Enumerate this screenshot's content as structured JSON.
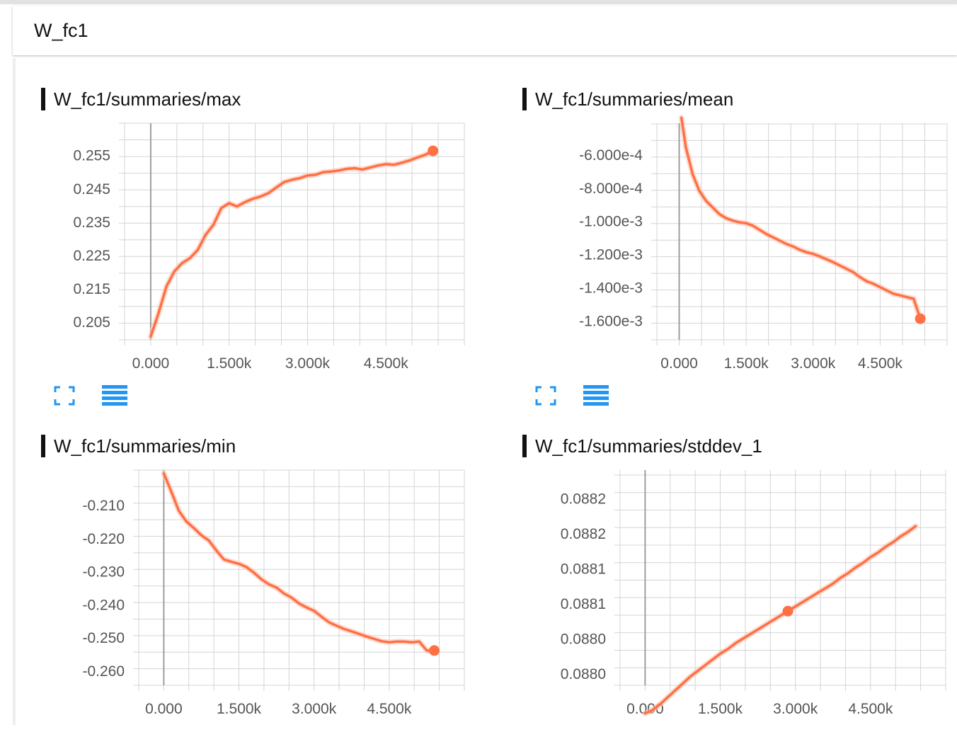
{
  "header": {
    "title": "W_fc1"
  },
  "colors": {
    "line": "#ff7043",
    "halo": "#fbc7b8",
    "grid": "#d4d4d4",
    "zero": "#9e9e9e",
    "icon": "#2196f3",
    "tick": "#555555"
  },
  "charts": [
    {
      "title": "W_fc1/summaries/max",
      "chart_data": {
        "type": "line",
        "x": [
          0,
          150,
          300,
          450,
          600,
          750,
          900,
          1050,
          1200,
          1350,
          1500,
          1650,
          1800,
          1950,
          2100,
          2250,
          2400,
          2550,
          2700,
          2850,
          3000,
          3150,
          3300,
          3450,
          3600,
          3750,
          3900,
          4050,
          4200,
          4350,
          4500,
          4650,
          4800,
          4950,
          5100,
          5250,
          5400
        ],
        "y": [
          0.2005,
          0.2075,
          0.2155,
          0.22,
          0.2225,
          0.224,
          0.2265,
          0.231,
          0.234,
          0.239,
          0.2405,
          0.2395,
          0.2408,
          0.2418,
          0.2425,
          0.2435,
          0.2452,
          0.2468,
          0.2475,
          0.248,
          0.2488,
          0.249,
          0.2498,
          0.25,
          0.2503,
          0.2508,
          0.251,
          0.2506,
          0.2512,
          0.2518,
          0.2522,
          0.252,
          0.2526,
          0.2533,
          0.2542,
          0.255,
          0.2562
        ],
        "xticks": [
          "0.000",
          "1.500k",
          "3.000k",
          "4.500k"
        ],
        "yticks": [
          "0.205",
          "0.215",
          "0.225",
          "0.235",
          "0.245",
          "0.255"
        ],
        "ytick_values": [
          0.205,
          0.215,
          0.225,
          0.235,
          0.245,
          0.255
        ],
        "xlim": [
          -500,
          6000
        ],
        "ylim": [
          0.1995,
          0.2645
        ],
        "xgrid_step": 500,
        "ygrid_step": 0.005,
        "marker_index": 36
      }
    },
    {
      "title": "W_fc1/summaries/mean",
      "chart_data": {
        "type": "line",
        "x": [
          50,
          150,
          300,
          450,
          600,
          750,
          900,
          1050,
          1200,
          1350,
          1500,
          1650,
          1800,
          1950,
          2100,
          2250,
          2400,
          2550,
          2700,
          2850,
          3000,
          3150,
          3300,
          3450,
          3600,
          3750,
          3900,
          4050,
          4200,
          4350,
          4500,
          4650,
          4800,
          4950,
          5100,
          5250,
          5400
        ],
        "y": [
          -0.00038,
          -0.00056,
          -0.00072,
          -0.00082,
          -0.00088,
          -0.00092,
          -0.00096,
          -0.000985,
          -0.001,
          -0.00101,
          -0.001015,
          -0.00103,
          -0.001055,
          -0.00108,
          -0.0011,
          -0.00112,
          -0.00114,
          -0.001155,
          -0.001175,
          -0.00119,
          -0.0012,
          -0.001215,
          -0.001232,
          -0.00125,
          -0.00127,
          -0.00129,
          -0.00131,
          -0.00134,
          -0.001365,
          -0.00138,
          -0.0014,
          -0.00142,
          -0.00144,
          -0.00145,
          -0.00146,
          -0.00147,
          -0.00159
        ],
        "xticks": [
          "0.000",
          "1.500k",
          "3.000k",
          "4.500k"
        ],
        "yticks": [
          "-6.000e-4",
          "-8.000e-4",
          "-1.000e-3",
          "-1.200e-3",
          "-1.400e-3",
          "-1.600e-3"
        ],
        "ytick_values": [
          -0.0006,
          -0.0008,
          -0.001,
          -0.0012,
          -0.0014,
          -0.0016
        ],
        "xlim": [
          -500,
          6000
        ],
        "ylim": [
          -0.001717,
          -0.000413
        ],
        "xgrid_step": 500,
        "ygrid_step": 0.0001,
        "marker_index": 36
      }
    },
    {
      "title": "W_fc1/summaries/min",
      "chart_data": {
        "type": "line",
        "x": [
          0,
          150,
          300,
          450,
          600,
          750,
          900,
          1050,
          1200,
          1350,
          1500,
          1650,
          1800,
          1950,
          2100,
          2250,
          2400,
          2550,
          2700,
          2850,
          3000,
          3150,
          3300,
          3450,
          3600,
          3750,
          3900,
          4050,
          4200,
          4350,
          4500,
          4650,
          4800,
          4950,
          5100,
          5250,
          5400
        ],
        "y": [
          -0.2005,
          -0.206,
          -0.2118,
          -0.215,
          -0.217,
          -0.2192,
          -0.2208,
          -0.2238,
          -0.2265,
          -0.2272,
          -0.2278,
          -0.2288,
          -0.2305,
          -0.2325,
          -0.234,
          -0.235,
          -0.2368,
          -0.238,
          -0.2398,
          -0.241,
          -0.242,
          -0.2438,
          -0.2455,
          -0.2465,
          -0.2475,
          -0.2482,
          -0.249,
          -0.2498,
          -0.2505,
          -0.2512,
          -0.2515,
          -0.2513,
          -0.2513,
          -0.2515,
          -0.2513,
          -0.254,
          -0.254
        ],
        "xticks": [
          "0.000",
          "1.500k",
          "3.000k",
          "4.500k"
        ],
        "yticks": [
          "-0.210",
          "-0.220",
          "-0.230",
          "-0.240",
          "-0.250",
          "-0.260"
        ],
        "ytick_values": [
          -0.21,
          -0.22,
          -0.23,
          -0.24,
          -0.25,
          -0.26
        ],
        "xlim": [
          -500,
          6000
        ],
        "ylim": [
          -0.2645,
          -0.1995
        ],
        "xgrid_step": 500,
        "ygrid_step": 0.005,
        "marker_index": 36
      }
    },
    {
      "title": "W_fc1/summaries/stddev_1",
      "chart_data": {
        "type": "line",
        "x": [
          0,
          150,
          300,
          450,
          600,
          750,
          900,
          1050,
          1200,
          1350,
          1500,
          1650,
          1800,
          1950,
          2100,
          2250,
          2400,
          2550,
          2700,
          2850,
          3000,
          3150,
          3300,
          3450,
          3600,
          3750,
          3900,
          4050,
          4200,
          4350,
          4500,
          4650,
          4800,
          4950,
          5100,
          5250,
          5400
        ],
        "y": [
          0.088,
          0.088003,
          0.088008,
          0.088014,
          0.08802,
          0.088026,
          0.088032,
          0.088037,
          0.088042,
          0.088047,
          0.088052,
          0.088056,
          0.088061,
          0.088065,
          0.088069,
          0.088073,
          0.088077,
          0.088081,
          0.088085,
          0.088089,
          0.088093,
          0.088097,
          0.088101,
          0.088105,
          0.088109,
          0.088113,
          0.088118,
          0.088122,
          0.088127,
          0.088131,
          0.088136,
          0.08814,
          0.088145,
          0.088149,
          0.088154,
          0.088158,
          0.088163
        ],
        "xticks": [
          "0.000",
          "1.500k",
          "3.000k",
          "4.500k"
        ],
        "yticks": [
          "0.0882",
          "0.0882",
          "0.0881",
          "0.0881",
          "0.0880",
          "0.0880"
        ],
        "ytick_values": [
          0.0881875,
          0.088157,
          0.0881265,
          0.088096,
          0.0880655,
          0.088035
        ],
        "xlim": [
          -500,
          6000
        ],
        "ylim": [
          -0.0880245,
          0.0882118
        ],
        "xgrid_step": 500,
        "ygrid_step": 1.525e-05,
        "marker_index": 19
      }
    }
  ]
}
